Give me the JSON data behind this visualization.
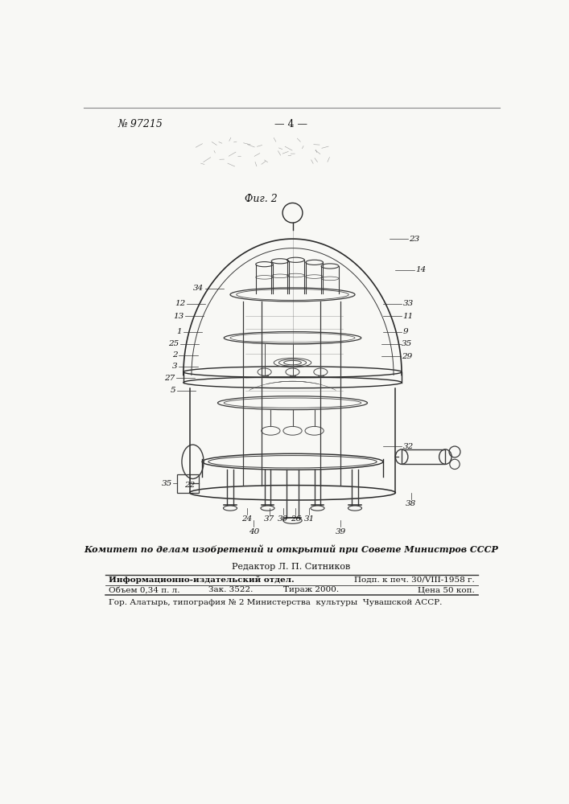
{
  "page_number": "№ 97215",
  "page_label": "— 4 —",
  "fig_label": "Фиг. 2",
  "bg_color": "#f5f5f0",
  "text_color": "#1a1a1a",
  "committee_text": "Комитет по делам изобретений и открытий при Совете Министров СССР",
  "editor_text": "Редактор Л. П. Ситников",
  "table_row1_col1": "Информационно-издательский отдел.",
  "table_row1_col2": "Подп. к печ. 30/VIII-1958 г.",
  "table_row2_col1": "Объем 0,34 п. л.",
  "table_row2_col2": "Зак. 3522.",
  "table_row2_col3": "Тираж 2000.",
  "table_row2_col4": "Цена 50 коп.",
  "footer_text": "Гор. Алатырь, типография № 2 Министерства  культуры  Чувашской АССР.",
  "left_labels": [
    "34",
    "12",
    "13",
    "1",
    "25",
    "2",
    "3",
    "27",
    "5"
  ],
  "right_labels": [
    "23",
    "14",
    "33",
    "11",
    "9",
    "35",
    "29",
    "32"
  ],
  "bottom_labels": [
    "22",
    "24",
    "40",
    "37",
    "30",
    "26",
    "31",
    "39",
    "38"
  ],
  "label_35_left": "35"
}
